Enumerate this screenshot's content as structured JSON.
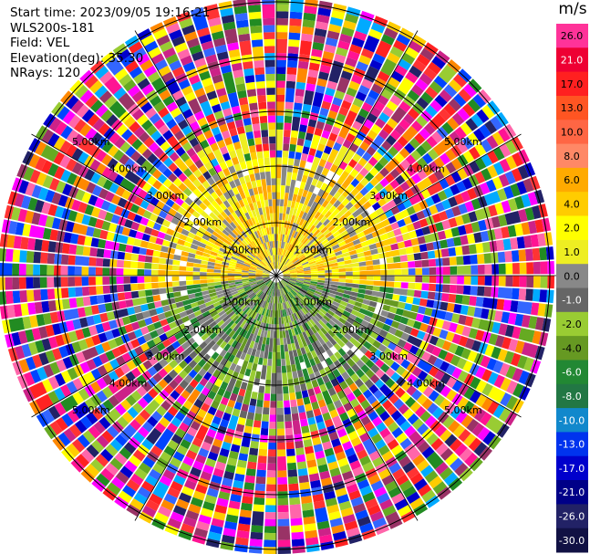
{
  "info": {
    "start_time": "Start time: 2023/09/05 19:16:21",
    "instrument": "WLS200s-181",
    "field": "Field: VEL",
    "elevation": "Elevation(deg): 35.30",
    "nrays": "NRays: 120"
  },
  "range_labels": [
    "1.00km",
    "2.00km",
    "3.00km",
    "4.00km",
    "5.00km"
  ],
  "colorbar": {
    "unit": "m/s",
    "bins": [
      {
        "label": "26.0",
        "color": "#ff3399"
      },
      {
        "label": "21.0",
        "color": "#ee0033"
      },
      {
        "label": "17.0",
        "color": "#ff2020"
      },
      {
        "label": "13.0",
        "color": "#ff5522"
      },
      {
        "label": "10.0",
        "color": "#ff6644"
      },
      {
        "label": "8.0",
        "color": "#ff8866"
      },
      {
        "label": "6.0",
        "color": "#ffaa00"
      },
      {
        "label": "4.0",
        "color": "#ffcc00"
      },
      {
        "label": "2.0",
        "color": "#ffff00"
      },
      {
        "label": "1.0",
        "color": "#eeee22"
      },
      {
        "label": "0.0",
        "color": "#888888"
      },
      {
        "label": "-1.0",
        "color": "#666666"
      },
      {
        "label": "-2.0",
        "color": "#99cc33"
      },
      {
        "label": "-4.0",
        "color": "#669922"
      },
      {
        "label": "-6.0",
        "color": "#228833"
      },
      {
        "label": "-8.0",
        "color": "#227744"
      },
      {
        "label": "-10.0",
        "color": "#1188cc"
      },
      {
        "label": "-13.0",
        "color": "#0033ee"
      },
      {
        "label": "-17.0",
        "color": "#0000cc"
      },
      {
        "label": "-21.0",
        "color": "#000088"
      },
      {
        "label": "-26.0",
        "color": "#222266"
      },
      {
        "label": "-30.0",
        "color": "#111144"
      }
    ]
  },
  "noise_palette": [
    "#ff1493",
    "#ff00ff",
    "#0000cc",
    "#ffff00",
    "#228b22",
    "#ff3333",
    "#00aaff",
    "#ff8800",
    "#222266",
    "#99cc33",
    "#cc2288",
    "#ff66aa",
    "#0044ff",
    "#ffcc00",
    "#993366",
    "#66aa22",
    "#ff2222",
    "#3366ff"
  ]
}
